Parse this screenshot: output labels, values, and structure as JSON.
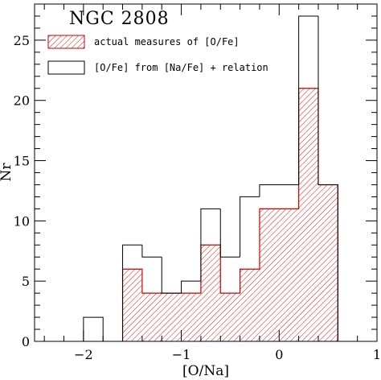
{
  "chart_data": {
    "type": "bar",
    "title": "NGC 2808",
    "xlabel": "[O/Na]",
    "ylabel": "Nr",
    "xlim": [
      -2.5,
      1
    ],
    "ylim": [
      0,
      28
    ],
    "x_ticks": [
      -2,
      -1,
      0,
      1
    ],
    "x_tick_labels": [
      "−2",
      "−1",
      "0",
      "1"
    ],
    "y_ticks": [
      0,
      5,
      10,
      15,
      20,
      25
    ],
    "y_tick_labels": [
      "0",
      "5",
      "10",
      "15",
      "20",
      "25"
    ],
    "bin_edges": [
      -2.5,
      -2.3,
      -2.1,
      -1.9,
      -1.7,
      -1.5,
      -1.3,
      -1.1,
      -0.9,
      -0.7,
      -0.5,
      -0.3,
      -0.1,
      0.1,
      0.3,
      0.5,
      0.7,
      0.9,
      1.0
    ],
    "series": [
      {
        "name": "actual measures of [O/Fe]",
        "style": "hatched",
        "color": "#cc0000",
        "bins": [
          {
            "x0": -1.6,
            "x1": -1.4,
            "value": 6
          },
          {
            "x0": -1.4,
            "x1": -1.2,
            "value": 4
          },
          {
            "x0": -1.2,
            "x1": -1.0,
            "value": 4
          },
          {
            "x0": -1.0,
            "x1": -0.8,
            "value": 4
          },
          {
            "x0": -0.8,
            "x1": -0.6,
            "value": 8
          },
          {
            "x0": -0.6,
            "x1": -0.4,
            "value": 4
          },
          {
            "x0": -0.4,
            "x1": -0.2,
            "value": 6
          },
          {
            "x0": -0.2,
            "x1": 0.0,
            "value": 11
          },
          {
            "x0": 0.0,
            "x1": 0.2,
            "value": 11
          },
          {
            "x0": 0.2,
            "x1": 0.4,
            "value": 21
          },
          {
            "x0": 0.4,
            "x1": 0.6,
            "value": 13
          }
        ]
      },
      {
        "name": "[O/Fe] from [Na/Fe] + relation",
        "style": "open",
        "color": "#000000",
        "bins": [
          {
            "x0": -2.0,
            "x1": -1.8,
            "value": 2
          },
          {
            "x0": -1.6,
            "x1": -1.4,
            "value": 8
          },
          {
            "x0": -1.4,
            "x1": -1.2,
            "value": 7
          },
          {
            "x0": -1.2,
            "x1": -1.0,
            "value": 4
          },
          {
            "x0": -1.0,
            "x1": -0.8,
            "value": 5
          },
          {
            "x0": -0.8,
            "x1": -0.6,
            "value": 11
          },
          {
            "x0": -0.6,
            "x1": -0.4,
            "value": 7
          },
          {
            "x0": -0.4,
            "x1": -0.2,
            "value": 12
          },
          {
            "x0": -0.2,
            "x1": 0.0,
            "value": 13
          },
          {
            "x0": 0.0,
            "x1": 0.2,
            "value": 13
          },
          {
            "x0": 0.2,
            "x1": 0.4,
            "value": 27
          },
          {
            "x0": 0.4,
            "x1": 0.6,
            "value": 13
          }
        ]
      }
    ],
    "legend": {
      "placement": "top-left",
      "entries": [
        {
          "label": "actual measures of [O/Fe]",
          "style": "hatched"
        },
        {
          "label": "[O/Fe] from [Na/Fe] + relation",
          "style": "open"
        }
      ]
    },
    "grid": false,
    "colors": {
      "hatch": "#cc0000",
      "outline": "#000000"
    }
  }
}
